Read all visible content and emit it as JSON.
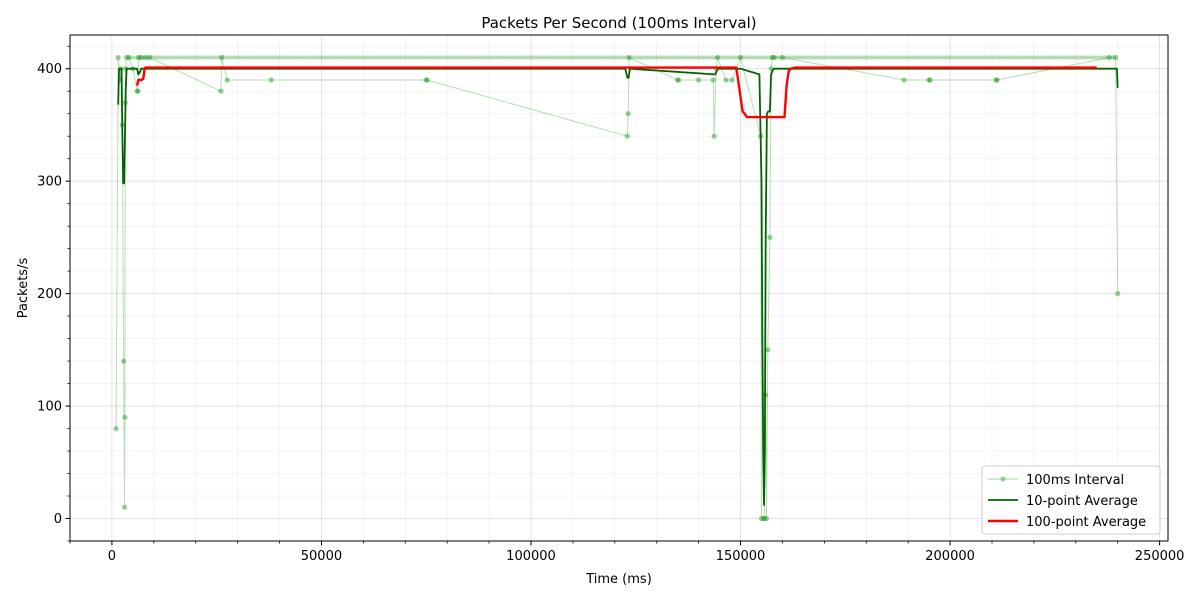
{
  "chart_data": {
    "type": "line",
    "title": "Packets Per Second (100ms Interval)",
    "xlabel": "Time (ms)",
    "ylabel": "Packets/s",
    "xlim": [
      -10000,
      252000
    ],
    "ylim": [
      -20,
      430
    ],
    "x_ticks": [
      0,
      50000,
      100000,
      150000,
      200000,
      250000
    ],
    "x_tick_labels": [
      "0",
      "50000",
      "100000",
      "150000",
      "200000",
      "250000"
    ],
    "y_ticks": [
      0,
      100,
      200,
      300,
      400
    ],
    "y_tick_labels": [
      "0",
      "100",
      "200",
      "300",
      "400"
    ],
    "grid": true,
    "legend_position": "bottom-right",
    "series": [
      {
        "name": "100ms Interval",
        "style": "line-with-markers",
        "color": "#2ca02c",
        "x": [
          1000,
          1500,
          2000,
          2200,
          2500,
          2800,
          3000,
          3100,
          3200,
          3300,
          3500,
          4000,
          5000,
          6000,
          6200,
          6400,
          7000,
          8000,
          9000,
          26000,
          26200,
          27500,
          38000,
          75000,
          75200,
          123000,
          123200,
          123400,
          135000,
          135200,
          140000,
          143500,
          143700,
          144200,
          144500,
          146500,
          148000,
          150000,
          154800,
          155000,
          155500,
          155700,
          156000,
          156200,
          156500,
          157000,
          157300,
          157600,
          158000,
          160000,
          189000,
          195000,
          195200,
          211000,
          211200,
          238000,
          239500,
          240000
        ],
        "values": [
          80,
          410,
          390,
          400,
          350,
          140,
          10,
          90,
          370,
          400,
          410,
          410,
          400,
          380,
          380,
          410,
          410,
          410,
          410,
          380,
          410,
          390,
          390,
          390,
          390,
          340,
          360,
          410,
          390,
          390,
          390,
          390,
          340,
          400,
          410,
          390,
          390,
          410,
          340,
          0,
          0,
          0,
          110,
          0,
          150,
          250,
          400,
          410,
          410,
          410,
          390,
          390,
          390,
          390,
          390,
          410,
          410,
          200
        ]
      },
      {
        "name": "10-point Average",
        "style": "line",
        "color": "#006400",
        "x": [
          1500,
          1700,
          1900,
          2100,
          2300,
          2500,
          2700,
          2900,
          3100,
          3300,
          3500,
          3700,
          4000,
          5000,
          6000,
          6300,
          6700,
          7000,
          8000,
          122500,
          123000,
          123300,
          123600,
          143800,
          144000,
          144300,
          144700,
          150000,
          154500,
          155000,
          155200,
          155400,
          155600,
          155800,
          156000,
          156300,
          156600,
          157000,
          157300,
          157600,
          158000,
          239800,
          240000
        ],
        "values": [
          368,
          400,
          400,
          400,
          400,
          340,
          298,
          298,
          335,
          380,
          400,
          400,
          400,
          400,
          400,
          395,
          397,
          400,
          400,
          400,
          392,
          392,
          400,
          395,
          395,
          398,
          400,
          400,
          395,
          300,
          170,
          60,
          12,
          60,
          250,
          360,
          362,
          362,
          395,
          398,
          400,
          400,
          383
        ]
      },
      {
        "name": "100-point Average",
        "style": "line",
        "color": "#ff0000",
        "x": [
          6000,
          6300,
          6600,
          7000,
          7500,
          7800,
          8000,
          9000,
          148000,
          149000,
          150000,
          150500,
          151000,
          151500,
          152000,
          153000,
          155000,
          158000,
          160500,
          161000,
          161500,
          162000,
          163000,
          235000
        ],
        "values": [
          385,
          390,
          390,
          390,
          391,
          400,
          401,
          401,
          401,
          401,
          375,
          362,
          360,
          357,
          357,
          357,
          357,
          357,
          357,
          385,
          398,
          400,
          401,
          401
        ]
      }
    ]
  }
}
